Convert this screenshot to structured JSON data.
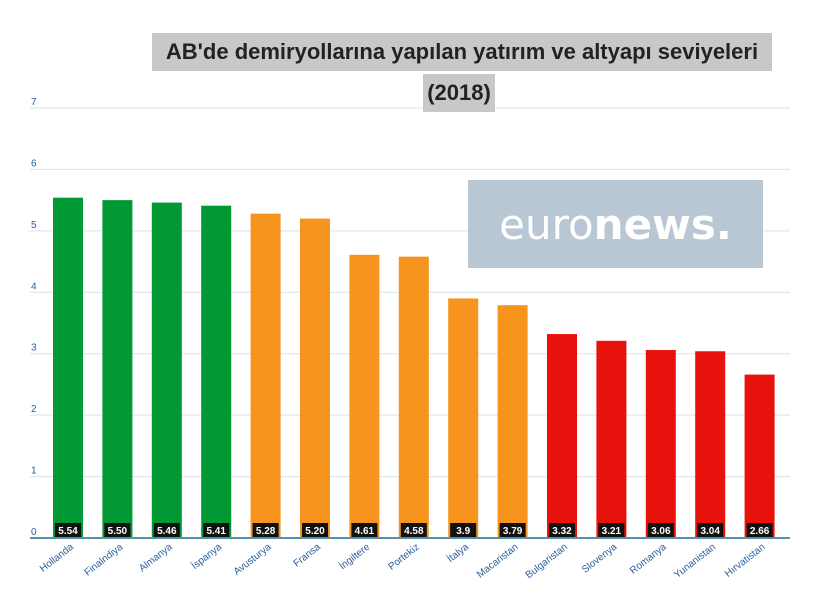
{
  "chart_data": {
    "type": "bar",
    "title_line1": "AB'de demiryollarına yapılan yatırım ve altyapı seviyeleri",
    "title_line2": "(2018)",
    "categories": [
      "Hollanda",
      "Finalndiya",
      "Almanya",
      "İspanya",
      "Avusturya",
      "Fransa",
      "İngiltere",
      "Portekiz",
      "İtalya",
      "Macaristan",
      "Bulgaristan",
      "Slovenya",
      "Romanya",
      "Yunanistan",
      "Hırvatistan"
    ],
    "values": [
      5.54,
      5.5,
      5.46,
      5.41,
      5.28,
      5.2,
      4.61,
      4.58,
      3.9,
      3.79,
      3.32,
      3.21,
      3.06,
      3.04,
      2.66
    ],
    "value_labels": [
      "5.54",
      "5.50",
      "5.46",
      "5.41",
      "5.28",
      "5.20",
      "4.61",
      "4.58",
      "3.9",
      "3.79",
      "3.32",
      "3.21",
      "3.06",
      "3.04",
      "2.66"
    ],
    "bar_colors": [
      "#009933",
      "#009933",
      "#009933",
      "#009933",
      "#f7941d",
      "#f7941d",
      "#f7941d",
      "#f7941d",
      "#f7941d",
      "#f7941d",
      "#e8120c",
      "#e8120c",
      "#e8120c",
      "#e8120c",
      "#e8120c"
    ],
    "yticks": [
      "0",
      "1",
      "2",
      "3",
      "4",
      "5",
      "6",
      "7"
    ],
    "ylim": [
      0,
      7
    ],
    "grid": true,
    "xlabel": "",
    "ylabel": ""
  },
  "logo": {
    "part1": "euro",
    "part2": "news."
  },
  "colors": {
    "tick_label": "#2a5e9b",
    "grid": "#d9e3e8",
    "axis": "#5a8fa8",
    "label_bg": "#111111",
    "label_text": "#ffffff"
  }
}
